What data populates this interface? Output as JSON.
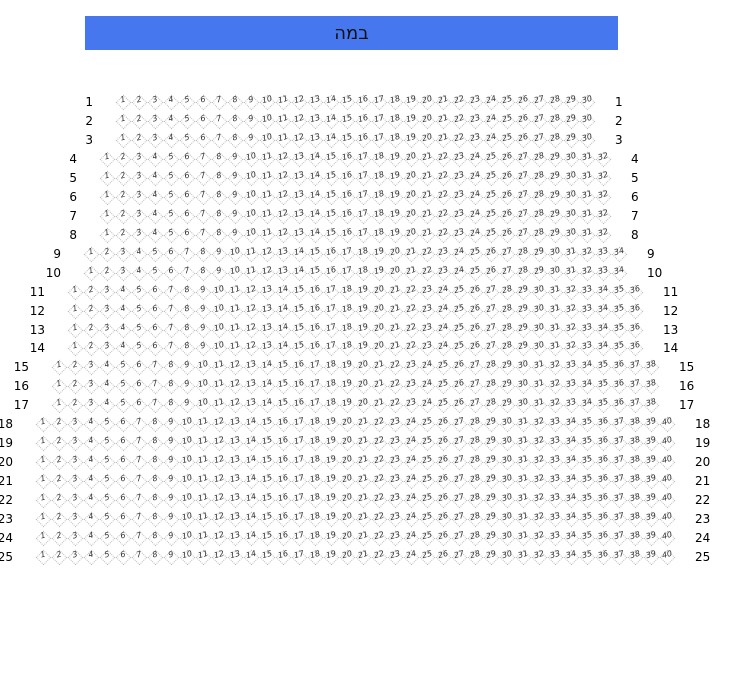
{
  "stage": {
    "label": "במה",
    "color": "#4677ef"
  },
  "rows": [
    {
      "label": "1",
      "seats": 30
    },
    {
      "label": "2",
      "seats": 30
    },
    {
      "label": "3",
      "seats": 30
    },
    {
      "label": "4",
      "seats": 32
    },
    {
      "label": "5",
      "seats": 32
    },
    {
      "label": "6",
      "seats": 32
    },
    {
      "label": "7",
      "seats": 32
    },
    {
      "label": "8",
      "seats": 32
    },
    {
      "label": "9",
      "seats": 34
    },
    {
      "label": "10",
      "seats": 34
    },
    {
      "label": "11",
      "seats": 36
    },
    {
      "label": "12",
      "seats": 36
    },
    {
      "label": "13",
      "seats": 36
    },
    {
      "label": "14",
      "seats": 36
    },
    {
      "label": "15",
      "seats": 38
    },
    {
      "label": "16",
      "seats": 38
    },
    {
      "label": "17",
      "seats": 38
    },
    {
      "label": "18",
      "seats": 40
    },
    {
      "label": "19",
      "seats": 40
    },
    {
      "label": "20",
      "seats": 40
    },
    {
      "label": "21",
      "seats": 40
    },
    {
      "label": "22",
      "seats": 40
    },
    {
      "label": "23",
      "seats": 40
    },
    {
      "label": "24",
      "seats": 40
    },
    {
      "label": "25",
      "seats": 40
    }
  ]
}
